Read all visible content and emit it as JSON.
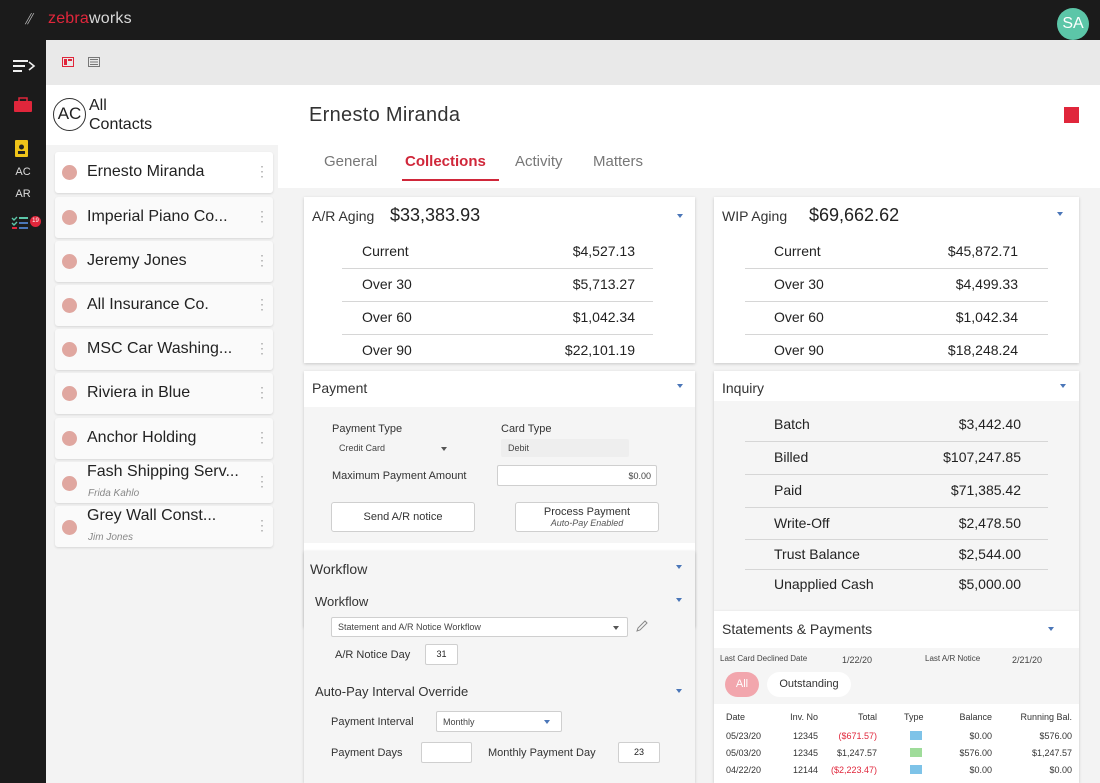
{
  "app": {
    "brand_prefix": "zebra",
    "brand_suffix": "works",
    "user_initials": "SA"
  },
  "rail": {
    "ac": "AC",
    "ar": "AR",
    "badge": "19"
  },
  "contacts": {
    "header_initials": "AC",
    "header_line1": "All",
    "header_line2": "Contacts",
    "items": [
      {
        "name": "Ernesto Miranda",
        "sub": ""
      },
      {
        "name": "Imperial Piano Co...",
        "sub": ""
      },
      {
        "name": "Jeremy Jones",
        "sub": ""
      },
      {
        "name": "All Insurance Co.",
        "sub": ""
      },
      {
        "name": "MSC Car Washing...",
        "sub": ""
      },
      {
        "name": "Riviera in Blue",
        "sub": ""
      },
      {
        "name": "Anchor Holding",
        "sub": ""
      },
      {
        "name": "Fash Shipping Serv...",
        "sub": "Frida Kahlo"
      },
      {
        "name": "Grey Wall Const...",
        "sub": "Jim Jones"
      }
    ]
  },
  "detail": {
    "title": "Ernesto Miranda",
    "tabs": [
      "General",
      "Collections",
      "Activity",
      "Matters"
    ],
    "active_tab": "Collections"
  },
  "ar_aging": {
    "title": "A/R Aging",
    "total": "$33,383.93",
    "rows": [
      {
        "label": "Current",
        "value": "$4,527.13"
      },
      {
        "label": "Over 30",
        "value": "$5,713.27"
      },
      {
        "label": "Over 60",
        "value": "$1,042.34"
      },
      {
        "label": "Over 90",
        "value": "$22,101.19"
      }
    ]
  },
  "wip_aging": {
    "title": "WIP Aging",
    "total": "$69,662.62",
    "rows": [
      {
        "label": "Current",
        "value": "$45,872.71"
      },
      {
        "label": "Over 30",
        "value": "$4,499.33"
      },
      {
        "label": "Over 60",
        "value": "$1,042.34"
      },
      {
        "label": "Over 90",
        "value": "$18,248.24"
      }
    ]
  },
  "payment": {
    "title": "Payment",
    "payment_type_label": "Payment Type",
    "payment_type_value": "Credit Card",
    "card_type_label": "Card Type",
    "card_type_value": "Debit",
    "max_amount_label": "Maximum Payment Amount",
    "max_amount_value": "$0.00",
    "send_button": "Send A/R notice",
    "process_button": "Process Payment",
    "process_sub": "Auto-Pay Enabled"
  },
  "inquiry": {
    "title": "Inquiry",
    "rows": [
      {
        "label": "Batch",
        "value": "$3,442.40"
      },
      {
        "label": "Billed",
        "value": "$107,247.85"
      },
      {
        "label": "Paid",
        "value": "$71,385.42"
      },
      {
        "label": "Write-Off",
        "value": "$2,478.50"
      },
      {
        "label": "Trust Balance",
        "value": "$2,544.00"
      },
      {
        "label": "Unapplied Cash",
        "value": "$5,000.00"
      }
    ]
  },
  "workflow": {
    "title": "Workflow",
    "sub_title": "Workflow",
    "select_value": "Statement and A/R Notice Workflow",
    "notice_day_label": "A/R Notice Day",
    "notice_day_value": "31",
    "autopay_title": "Auto-Pay Interval Override",
    "interval_label": "Payment Interval",
    "interval_value": "Monthly",
    "payment_days_label": "Payment Days",
    "payment_days_value": "",
    "monthly_day_label": "Monthly Payment Day",
    "monthly_day_value": "23"
  },
  "statements": {
    "title": "Statements & Payments",
    "last_card_declined_label": "Last Card Declined Date",
    "last_card_declined_value": "1/22/20",
    "last_notice_label": "Last A/R Notice",
    "last_notice_value": "2/21/20",
    "filters": [
      "All",
      "Outstanding"
    ],
    "columns": [
      "Date",
      "Inv. No",
      "Total",
      "Type",
      "Balance",
      "Running Bal."
    ],
    "rows": [
      {
        "date": "05/23/20",
        "inv": "12345",
        "total": "($671.57)",
        "negative": true,
        "type": "$",
        "balance": "$0.00",
        "running": "$576.00"
      },
      {
        "date": "05/03/20",
        "inv": "12345",
        "total": "$1,247.57",
        "negative": false,
        "type": "I $",
        "balance": "$576.00",
        "running": "$1,247.57"
      },
      {
        "date": "04/22/20",
        "inv": "12144",
        "total": "($2,223.47)",
        "negative": true,
        "type": "$",
        "balance": "$0.00",
        "running": "$0.00"
      }
    ]
  },
  "colors": {
    "accent": "#d0273a",
    "caret": "#4a76b8",
    "avatar": "#5cc6a8"
  }
}
